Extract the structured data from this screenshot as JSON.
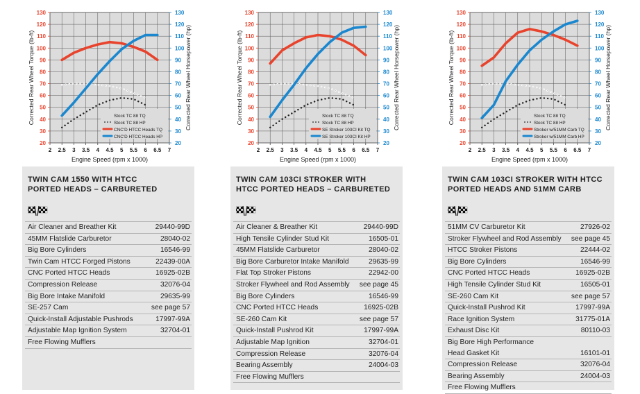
{
  "colors": {
    "torque": "#e8432d",
    "horsepower": "#1a87cf",
    "stock_dots": "#222222",
    "left_axis": "#e8432d",
    "right_axis": "#1a87cf",
    "plot_bg": "#dcdcdc",
    "grid": "#555555",
    "card_bg": "#e6e6e6"
  },
  "panels": [
    {
      "chart_data": {
        "type": "line",
        "xlabel": "Engine Speed (rpm x 1000)",
        "ylabel_left": "Corrected Rear Wheel Torque (lb-ft)",
        "ylabel_right": "Corrected Rear Wheel Horsepower (hp)",
        "x_ticks": [
          "2",
          "2.5",
          "3",
          "3.5",
          "4",
          "4.5",
          "5",
          "5.5",
          "6",
          "6.5",
          "7"
        ],
        "xlim": [
          2,
          7
        ],
        "ylim_left": [
          20,
          130
        ],
        "ylim_right": [
          20,
          130
        ],
        "y_ticks": [
          "20",
          "30",
          "40",
          "50",
          "60",
          "70",
          "80",
          "90",
          "100",
          "110",
          "120",
          "130"
        ],
        "series": [
          {
            "name": "Stock TC 88 TQ",
            "style": "dotted-open",
            "x": [
              2.5,
              3,
              3.5,
              4,
              4.5,
              5,
              5.5,
              6
            ],
            "y": [
              69,
              70,
              70,
              69,
              68,
              66,
              62,
              58
            ]
          },
          {
            "name": "Stock TC 88 HP",
            "style": "dotted",
            "x": [
              2.5,
              3,
              3.5,
              4,
              4.5,
              5,
              5.5,
              6
            ],
            "y": [
              33,
              40,
              46,
              52,
              56,
              58,
              57,
              52
            ]
          },
          {
            "name": "CNC'D HTCC Heads TQ",
            "style": "torque",
            "x": [
              2.5,
              3,
              3.5,
              4,
              4.5,
              5,
              5.5,
              6,
              6.5
            ],
            "y": [
              90,
              96,
              100,
              103,
              105,
              104,
              101,
              97,
              90
            ]
          },
          {
            "name": "CNC'D HTCC Heads HP",
            "style": "horsepower",
            "x": [
              2.5,
              3,
              3.5,
              4,
              4.5,
              5,
              5.5,
              6,
              6.5
            ],
            "y": [
              43,
              54,
              66,
              78,
              89,
              99,
              106,
              111,
              111
            ]
          }
        ]
      },
      "title": "TWIN CAM 1550 WITH HTCC\nPORTED HEADS – CARBURETED",
      "flag_icon": "checkered-flags-icon",
      "parts": [
        {
          "name": "Air Cleaner and Breather Kit",
          "number": "29440-99D"
        },
        {
          "name": "45MM Flatslide Carburetor",
          "number": "28040-02"
        },
        {
          "name": "Big Bore Cylinders",
          "number": "16546-99"
        },
        {
          "name": "Twin Cam HTCC Forged Pistons",
          "number": "22439-00A"
        },
        {
          "name": "CNC Ported HTCC Heads",
          "number": "16925-02B"
        },
        {
          "name": "Compression Release",
          "number": "32076-04"
        },
        {
          "name": "Big Bore Intake Manifold",
          "number": "29635-99"
        },
        {
          "name": "SE-257 Cam",
          "number": "see page 57"
        },
        {
          "name": "Quick-Install Adjustable Pushrods",
          "number": "17997-99A"
        },
        {
          "name": "Adjustable Map Ignition System",
          "number": "32704-01"
        },
        {
          "name": "Free Flowing Mufflers",
          "number": ""
        }
      ]
    },
    {
      "chart_data": {
        "type": "line",
        "xlabel": "Engine Speed (rpm x 1000)",
        "ylabel_left": "Corrected Rear Wheel Torque (lb-ft)",
        "ylabel_right": "Corrected Rear Wheel Horsepower (hp)",
        "x_ticks": [
          "2",
          "2.5",
          "3",
          "3.5",
          "4",
          "4.5",
          "5",
          "5.5",
          "6",
          "6.5",
          "7"
        ],
        "xlim": [
          2,
          7
        ],
        "ylim_left": [
          20,
          130
        ],
        "ylim_right": [
          20,
          130
        ],
        "y_ticks": [
          "20",
          "30",
          "40",
          "50",
          "60",
          "70",
          "80",
          "90",
          "100",
          "110",
          "120",
          "130"
        ],
        "series": [
          {
            "name": "Stock TC 88 TQ",
            "style": "dotted-open",
            "x": [
              2.5,
              3,
              3.5,
              4,
              4.5,
              5,
              5.5,
              6
            ],
            "y": [
              69,
              70,
              70,
              69,
              68,
              66,
              62,
              58
            ]
          },
          {
            "name": "Stock TC 88 HP",
            "style": "dotted",
            "x": [
              2.5,
              3,
              3.5,
              4,
              4.5,
              5,
              5.5,
              6
            ],
            "y": [
              33,
              40,
              46,
              52,
              56,
              58,
              57,
              52
            ]
          },
          {
            "name": "SE Stroker 103CI Kit TQ",
            "style": "torque",
            "x": [
              2.5,
              3,
              3.5,
              4,
              4.5,
              5,
              5.5,
              6,
              6.5
            ],
            "y": [
              87,
              98,
              104,
              109,
              111,
              110,
              107,
              102,
              94
            ]
          },
          {
            "name": "SE Stroker 103CI Kit HP",
            "style": "horsepower",
            "x": [
              2.5,
              3,
              3.5,
              4,
              4.5,
              5,
              5.5,
              6,
              6.5
            ],
            "y": [
              42,
              56,
              69,
              83,
              95,
              105,
              113,
              117,
              118
            ]
          }
        ]
      },
      "title": "TWIN CAM 103CI STROKER WITH\nHTCC PORTED HEADS – CARBURETED",
      "flag_icon": "checkered-flags-icon",
      "parts": [
        {
          "name": "Air Cleaner & Breather Kit",
          "number": "29440-99D"
        },
        {
          "name": "High Tensile Cylinder Stud Kit",
          "number": "16505-01"
        },
        {
          "name": "45MM Flatslide Carburetor",
          "number": "28040-02"
        },
        {
          "name": "Big Bore Carburetor Intake Manifold",
          "number": "29635-99"
        },
        {
          "name": "Flat Top Stroker Pistons",
          "number": "22942-00"
        },
        {
          "name": "Stroker Flywheel and Rod Assembly",
          "number": "see page 45"
        },
        {
          "name": "Big Bore Cylinders",
          "number": "16546-99"
        },
        {
          "name": "CNC Ported HTCC Heads",
          "number": "16925-02B"
        },
        {
          "name": "SE-260 Cam Kit",
          "number": "see page 57"
        },
        {
          "name": "Quick-Install Pushrod Kit",
          "number": "17997-99A"
        },
        {
          "name": "Adjustable Map Ignition",
          "number": "32704-01"
        },
        {
          "name": "Compression Release",
          "number": "32076-04"
        },
        {
          "name": "Bearing Assembly",
          "number": "24004-03"
        },
        {
          "name": "Free Flowing Mufflers",
          "number": ""
        }
      ]
    },
    {
      "chart_data": {
        "type": "line",
        "xlabel": "Engine Speed (rpm x 1000)",
        "ylabel_left": "Corrected Rear Wheel Torque (lb-ft)",
        "ylabel_right": "Corrected Rear Wheel Horsepower (hp)",
        "x_ticks": [
          "2",
          "2.5",
          "3",
          "3.5",
          "4",
          "4.5",
          "5",
          "5.5",
          "6",
          "6.5",
          "7"
        ],
        "xlim": [
          2,
          7
        ],
        "ylim_left": [
          20,
          130
        ],
        "ylim_right": [
          20,
          130
        ],
        "y_ticks": [
          "20",
          "30",
          "40",
          "50",
          "60",
          "70",
          "80",
          "90",
          "100",
          "110",
          "120",
          "130"
        ],
        "series": [
          {
            "name": "Stock TC 88 TQ",
            "style": "dotted-open",
            "x": [
              2.5,
              3,
              3.5,
              4,
              4.5,
              5,
              5.5,
              6
            ],
            "y": [
              69,
              70,
              70,
              69,
              68,
              66,
              62,
              58
            ]
          },
          {
            "name": "Stock TC 88 HP",
            "style": "dotted",
            "x": [
              2.5,
              3,
              3.5,
              4,
              4.5,
              5,
              5.5,
              6
            ],
            "y": [
              33,
              40,
              46,
              52,
              56,
              58,
              57,
              52
            ]
          },
          {
            "name": "Stroker w/51MM Carb TQ",
            "style": "torque",
            "x": [
              2.5,
              3,
              3.5,
              4,
              4.5,
              5,
              5.5,
              6,
              6.5
            ],
            "y": [
              85,
              92,
              104,
              113,
              116,
              114,
              111,
              107,
              102
            ]
          },
          {
            "name": "Stroker w/51MM Carb HP",
            "style": "horsepower",
            "x": [
              2.5,
              3,
              3.5,
              4,
              4.5,
              5,
              5.5,
              6,
              6.5
            ],
            "y": [
              41,
              52,
              72,
              86,
              98,
              107,
              114,
              120,
              123
            ]
          }
        ]
      },
      "title": "TWIN CAM 103CI STROKER WITH HTCC\nPORTED HEADS AND 51MM CARB",
      "flag_icon": "checkered-flags-icon",
      "parts": [
        {
          "name": "51MM CV Carburetor Kit",
          "number": "27926-02"
        },
        {
          "name": "Stroker Flywheel and Rod Assembly",
          "number": "see page 45"
        },
        {
          "name": "HTCC Stroker Pistons",
          "number": "22444-02"
        },
        {
          "name": "Big Bore Cylinders",
          "number": "16546-99"
        },
        {
          "name": "CNC Ported HTCC Heads",
          "number": "16925-02B"
        },
        {
          "name": "High Tensile Cylinder Stud Kit",
          "number": "16505-01"
        },
        {
          "name": "SE-260 Cam Kit",
          "number": "see page 57"
        },
        {
          "name": "Quick-Install Pushrod Kit",
          "number": "17997-99A"
        },
        {
          "name": "Race Ignition System",
          "number": "31775-01A"
        },
        {
          "name": "Exhaust Disc Kit",
          "number": "80110-03"
        },
        {
          "name": "Big Bore High Performance\n   Head Gasket Kit",
          "number": "16101-01"
        },
        {
          "name": "Compression Release",
          "number": "32076-04"
        },
        {
          "name": "Bearing Assembly",
          "number": "24004-03"
        },
        {
          "name": "Free Flowing Mufflers",
          "number": ""
        }
      ]
    }
  ]
}
